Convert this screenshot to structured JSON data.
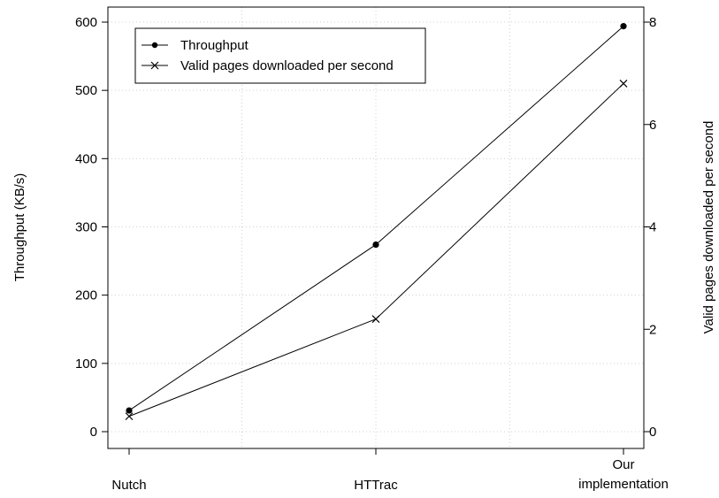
{
  "chart_data": {
    "type": "line",
    "categories": [
      "Nutch",
      "HTTrac",
      "Our implementation"
    ],
    "category_lines": [
      [
        "Nutch"
      ],
      [
        "HTTrac"
      ],
      [
        "Our",
        "implementation"
      ]
    ],
    "y_left": {
      "label": "Throughput (KB/s)",
      "ylim": [
        0,
        600
      ],
      "ticks": [
        0,
        100,
        200,
        300,
        400,
        500,
        600
      ]
    },
    "y_right": {
      "label": "Valid pages downloaded per second",
      "ylim": [
        0,
        8
      ],
      "ticks": [
        0,
        2,
        4,
        6,
        8
      ]
    },
    "series": [
      {
        "name": "Throughput",
        "axis": "left",
        "marker": "filled-circle",
        "values": [
          31,
          274,
          594
        ]
      },
      {
        "name": "Valid pages downloaded per second",
        "axis": "right",
        "marker": "x",
        "values": [
          0.3,
          2.2,
          6.8
        ]
      }
    ],
    "grid": true,
    "legend_position": "top-left"
  }
}
